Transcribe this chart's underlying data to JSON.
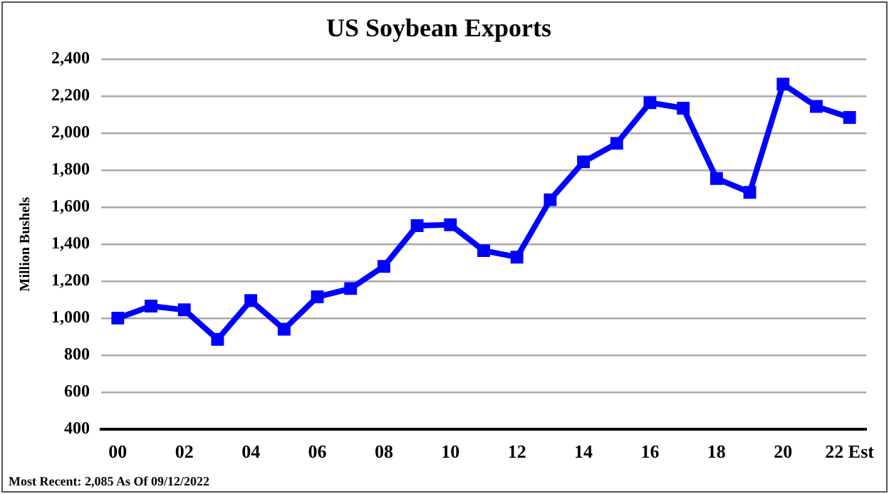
{
  "chart_data": {
    "type": "line",
    "title": "US Soybean Exports",
    "ylabel": "Million Bushels",
    "categories": [
      "00",
      null,
      "02",
      null,
      "04",
      null,
      "06",
      null,
      "08",
      null,
      "10",
      null,
      "12",
      null,
      "14",
      null,
      "16",
      null,
      "18",
      null,
      "20",
      null,
      "22 Est"
    ],
    "series": [
      {
        "color": "#0000ff",
        "values": [
          1000,
          1065,
          1045,
          885,
          1095,
          940,
          1115,
          1160,
          1280,
          1500,
          1505,
          1365,
          1330,
          1640,
          1845,
          1945,
          2165,
          2135,
          1755,
          1680,
          2265,
          2145,
          2085
        ]
      }
    ],
    "ylim": [
      400,
      2400
    ],
    "yticks": [
      {
        "value": 400,
        "label": "400"
      },
      {
        "value": 600,
        "label": "600"
      },
      {
        "value": 800,
        "label": "800"
      },
      {
        "value": 1000,
        "label": "1,000"
      },
      {
        "value": 1200,
        "label": "1,200"
      },
      {
        "value": 1400,
        "label": "1,400"
      },
      {
        "value": 1600,
        "label": "1,600"
      },
      {
        "value": 1800,
        "label": "1,800"
      },
      {
        "value": 2000,
        "label": "2,000"
      },
      {
        "value": 2200,
        "label": "2,200"
      },
      {
        "value": 2400,
        "label": "2,400"
      }
    ],
    "grid": "y",
    "legend": false,
    "marker": "square",
    "line_style": "solid",
    "annotations": [
      "Most Recent: 2,085 As Of 09/12/2022"
    ]
  }
}
